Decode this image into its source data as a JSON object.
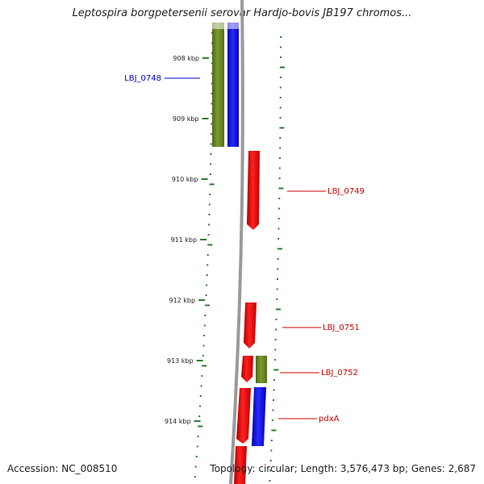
{
  "title": "Leptospira borgpetersenii serovar Hardjo-bovis JB197 chromos...",
  "footer": {
    "accession": "Accession: NC_008510",
    "summary": "Topology: circular; Length: 3,576,473 bp; Genes: 2,687"
  },
  "colors": {
    "backbone": "#808080",
    "tick": "#2e7d32",
    "forward_gene": "#ff0000",
    "green_track": "#6b8e23",
    "blue_track": "#0000ff",
    "blue_label": "#0000cc",
    "red_label": "#cc0000"
  },
  "axis": {
    "unit": "kbp",
    "ticks": [
      {
        "label": "908 kbp",
        "value": 908
      },
      {
        "label": "909 kbp",
        "value": 909
      },
      {
        "label": "910 kbp",
        "value": 910
      },
      {
        "label": "911 kbp",
        "value": 911
      },
      {
        "label": "912 kbp",
        "value": 912
      },
      {
        "label": "913 kbp",
        "value": 913
      },
      {
        "label": "914 kbp",
        "value": 914
      }
    ]
  },
  "gene_labels": [
    {
      "name": "LBJ_0748",
      "side": "left",
      "color": "blue"
    },
    {
      "name": "LBJ_0749",
      "side": "right",
      "color": "red"
    },
    {
      "name": "LBJ_0751",
      "side": "right",
      "color": "red"
    },
    {
      "name": "LBJ_0752",
      "side": "right",
      "color": "red"
    },
    {
      "name": "pdxA",
      "side": "right",
      "color": "red"
    }
  ]
}
